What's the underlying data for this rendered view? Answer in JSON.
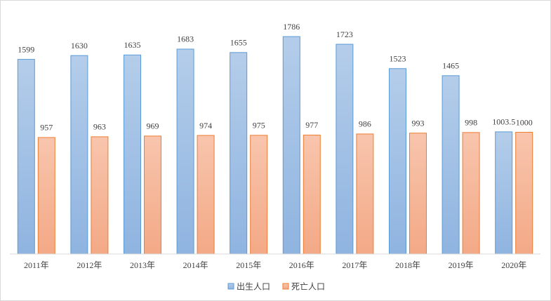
{
  "chart_data": {
    "type": "bar",
    "categories": [
      "2011年",
      "2012年",
      "2013年",
      "2014年",
      "2015年",
      "2016年",
      "2017年",
      "2018年",
      "2019年",
      "2020年"
    ],
    "series": [
      {
        "name": "出生人口",
        "color": "#5b9bd5",
        "values": [
          1599,
          1630,
          1635,
          1683,
          1655,
          1786,
          1723,
          1523,
          1465,
          1003.5
        ]
      },
      {
        "name": "死亡人口",
        "color": "#ed7d31",
        "values": [
          957,
          963,
          969,
          974,
          975,
          977,
          986,
          993,
          998,
          1000
        ]
      }
    ],
    "ylim": [
      0,
      2000
    ],
    "legend": "bottom"
  }
}
